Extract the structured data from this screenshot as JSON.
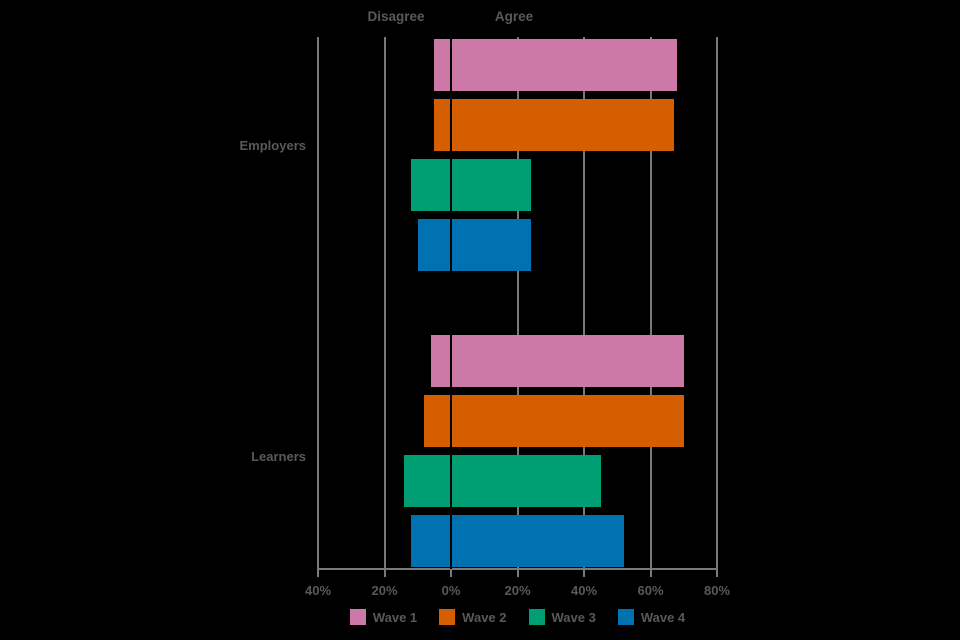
{
  "chart_data": {
    "type": "bar",
    "variant": "diverging-horizontal",
    "title": "",
    "header_labels": {
      "negative": "Disagree",
      "positive": "Agree"
    },
    "categories": [
      "Employers",
      "Learners"
    ],
    "series": [
      {
        "name": "Wave 1",
        "color": "#CC79A7",
        "disagree": [
          5,
          6
        ],
        "agree": [
          68,
          70
        ]
      },
      {
        "name": "Wave 2",
        "color": "#D55E00",
        "disagree": [
          5,
          8
        ],
        "agree": [
          67,
          70
        ]
      },
      {
        "name": "Wave 3",
        "color": "#009E73",
        "disagree": [
          12,
          14
        ],
        "agree": [
          24,
          45
        ]
      },
      {
        "name": "Wave 4",
        "color": "#0072B2",
        "disagree": [
          10,
          12
        ],
        "agree": [
          24,
          52
        ]
      }
    ],
    "x_axis": {
      "min": -40,
      "max": 80,
      "tick_step": 20,
      "tick_labels": [
        "40%",
        "20%",
        "0%",
        "20%",
        "40%",
        "60%",
        "80%"
      ],
      "unit": "%"
    },
    "grid": true,
    "legend_position": "bottom",
    "legend_entries": [
      "Wave 1",
      "Wave 2",
      "Wave 3",
      "Wave 4"
    ],
    "colors": {
      "background": "#000000",
      "grid": "#7a7a7a",
      "zero_line": "#000000",
      "text": "#595959"
    }
  }
}
